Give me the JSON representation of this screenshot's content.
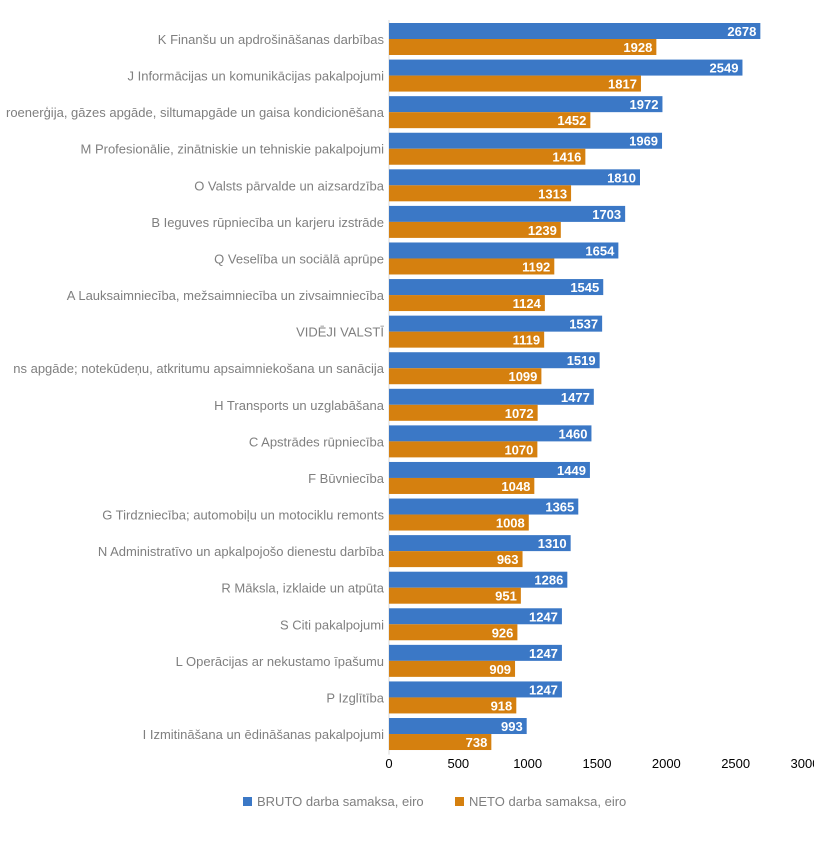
{
  "chart_data": {
    "type": "bar",
    "orientation": "horizontal",
    "categories": [
      "K Finanšu un apdrošināšanas darbības",
      "J Informācijas un komunikācijas pakalpojumi",
      "roenerģija, gāzes apgāde, siltumapgāde un gaisa kondicionēšana",
      "M Profesionālie, zinātniskie un tehniskie pakalpojumi",
      "O Valsts pārvalde un aizsardzība",
      "B Ieguves rūpniecība un karjeru izstrāde",
      "Q Veselība un sociālā aprūpe",
      "A Lauksaimniecība, mežsaimniecība un zivsaimniecība",
      "VIDĒJI VALSTĪ",
      "ns apgāde; notekūdeņu, atkritumu apsaimniekošana un sanācija",
      "H Transports un uzglabāšana",
      "C Apstrādes rūpniecība",
      "F Būvniecība",
      "G Tirdzniecība; automobiļu un motociklu remonts",
      "N Administratīvo un apkalpojošo dienestu darbība",
      "R Māksla, izklaide un atpūta",
      "S Citi pakalpojumi",
      "L Operācijas ar nekustamo īpašumu",
      "P Izglītība",
      "I Izmitināšana un ēdināšanas pakalpojumi"
    ],
    "series": [
      {
        "name": "BRUTO darba samaksa, eiro",
        "color": "#3b78c6",
        "values": [
          2678,
          2549,
          1972,
          1969,
          1810,
          1703,
          1654,
          1545,
          1537,
          1519,
          1477,
          1460,
          1449,
          1365,
          1310,
          1286,
          1247,
          1247,
          1247,
          993
        ]
      },
      {
        "name": "NETO darba samaksa, eiro",
        "color": "#d5800f",
        "values": [
          1928,
          1817,
          1452,
          1416,
          1313,
          1239,
          1192,
          1124,
          1119,
          1099,
          1072,
          1070,
          1048,
          1008,
          963,
          951,
          926,
          909,
          918,
          738
        ]
      }
    ],
    "xlim": [
      0,
      3000
    ],
    "xticks": [
      "0",
      "500",
      "1000",
      "1500",
      "2000",
      "2500",
      "3000"
    ],
    "grid": false,
    "data_labels": true,
    "legend_position": "bottom"
  }
}
